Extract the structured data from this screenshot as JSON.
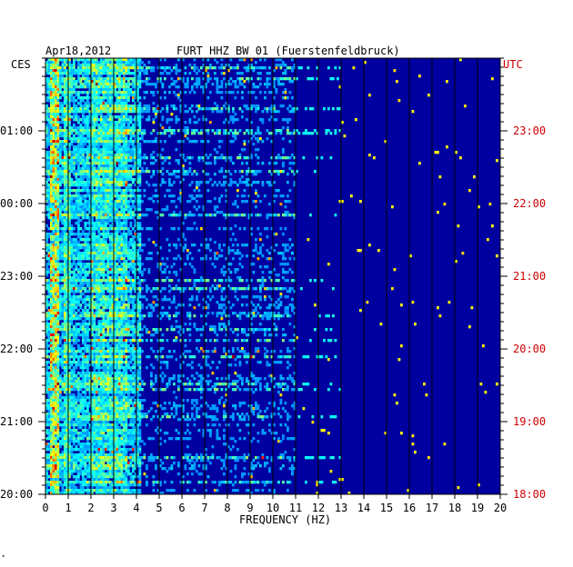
{
  "header": {
    "date": "Apr18,2012",
    "station": "FURT HHZ BW 01 (Fuerstenfeldbruck)"
  },
  "left_axis": {
    "label": "CES",
    "ticks": [
      "01:00",
      "00:00",
      "23:00",
      "22:00",
      "21:00",
      "20:00"
    ]
  },
  "right_axis": {
    "label": "UTC",
    "ticks": [
      "23:00",
      "22:00",
      "21:00",
      "20:00",
      "19:00",
      "18:00"
    ]
  },
  "colors": {
    "plot_bg": "#0000a0",
    "utc_text": "#cc0000",
    "text": "#000000"
  },
  "chart_data": {
    "type": "heatmap",
    "xlabel": "FREQUENCY (HZ)",
    "x_ticks": [
      "0",
      "1",
      "2",
      "3",
      "4",
      "5",
      "6",
      "7",
      "8",
      "9",
      "10",
      "11",
      "12",
      "13",
      "14",
      "15",
      "16",
      "17",
      "18",
      "19",
      "20"
    ],
    "xlim": [
      0,
      20
    ],
    "y_hours_ces": [
      "01:00",
      "00:00",
      "23:00",
      "22:00",
      "21:00",
      "20:00"
    ],
    "colormap": "jet (blue background, low-frequency energy concentrated below ~4 Hz)",
    "grid": "vertical lines at each 1 Hz"
  }
}
